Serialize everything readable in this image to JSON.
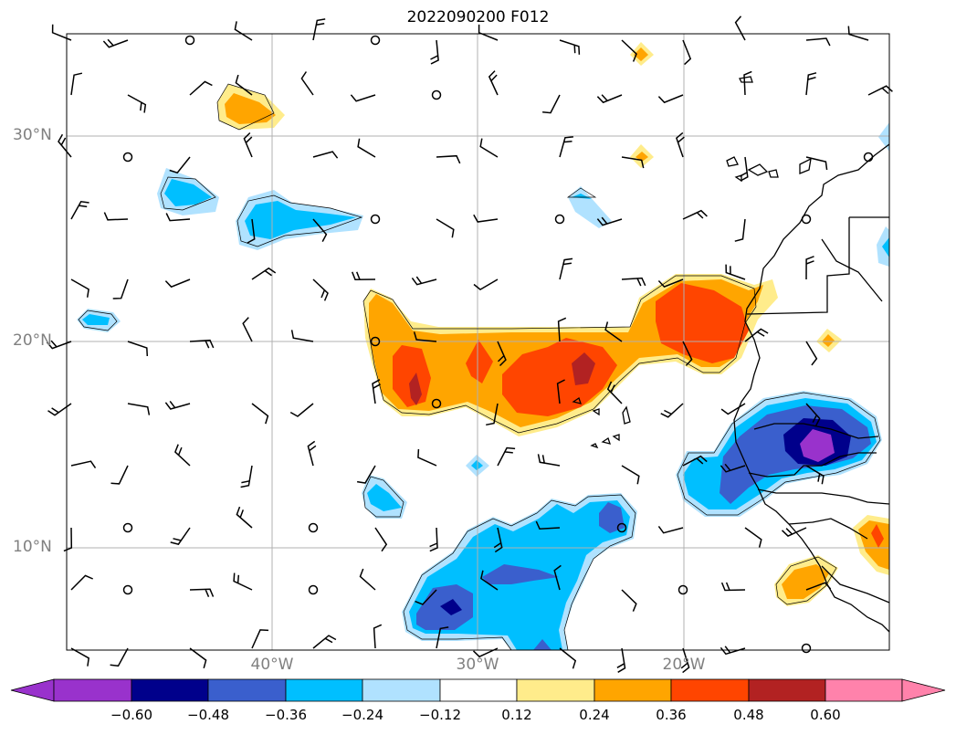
{
  "title": "2022090200 F012",
  "lat_labels": [
    "30°N",
    "20°N",
    "10°N"
  ],
  "lon_labels": [
    "40°W",
    "30°W",
    "20°W"
  ],
  "colorbar": {
    "ticks": [
      "−0.60",
      "−0.48",
      "−0.36",
      "−0.24",
      "−0.12",
      "0.12",
      "0.24",
      "0.36",
      "0.48",
      "0.60"
    ],
    "colors": [
      "#9932cc",
      "#00008b",
      "#3a5fcd",
      "#00bfff",
      "#b0e2ff",
      "#ffffff",
      "#ffec8b",
      "#ffa500",
      "#ff4500",
      "#b22222",
      "#ff82ab"
    ]
  },
  "colors": {
    "neg_strong": "#9932cc",
    "neg_dark": "#00008b",
    "neg_mid": "#3a5fcd",
    "neg_light": "#00bfff",
    "neg_pale": "#b0e2ff",
    "pos_pale": "#ffec8b",
    "pos_light": "#ffa500",
    "pos_mid": "#ff4500",
    "pos_dark": "#b22222",
    "gridline": "#b0b0b0"
  }
}
